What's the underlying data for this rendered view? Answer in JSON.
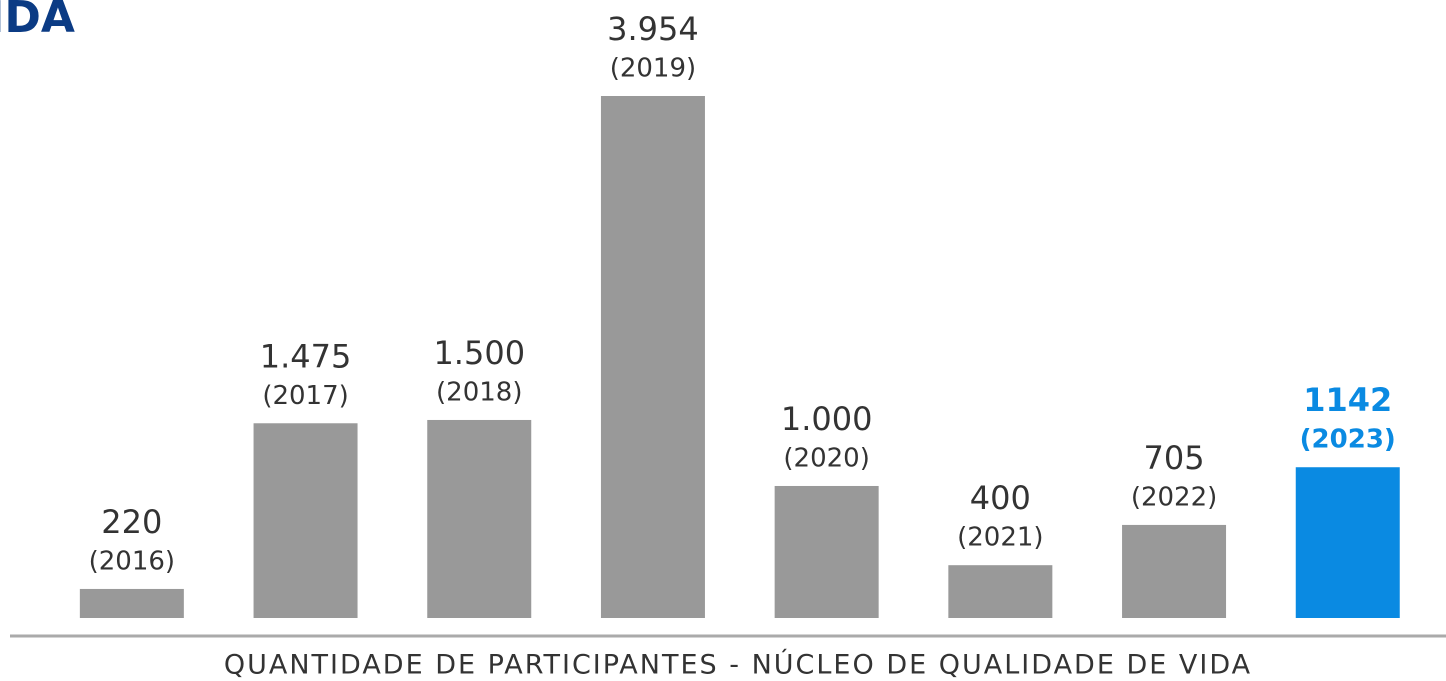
{
  "chart_data": {
    "type": "bar",
    "logo": "IDA",
    "x_label": "QUANTIDADE DE PARTICIPANTES - NÚCLEO DE QUALIDADE DE VIDA",
    "categories": [
      "(2016)",
      "(2017)",
      "(2018)",
      "(2019)",
      "(2020)",
      "(2021)",
      "(2022)",
      "(2023)"
    ],
    "values": [
      220,
      1475,
      1500,
      3954,
      1000,
      400,
      705,
      1142
    ],
    "value_labels": [
      "220",
      "1.475",
      "1.500",
      "3.954",
      "1.000",
      "400",
      "705",
      "1142"
    ],
    "colors": [
      "#999999",
      "#999999",
      "#999999",
      "#999999",
      "#999999",
      "#999999",
      "#999999",
      "#0a8ae2"
    ]
  }
}
